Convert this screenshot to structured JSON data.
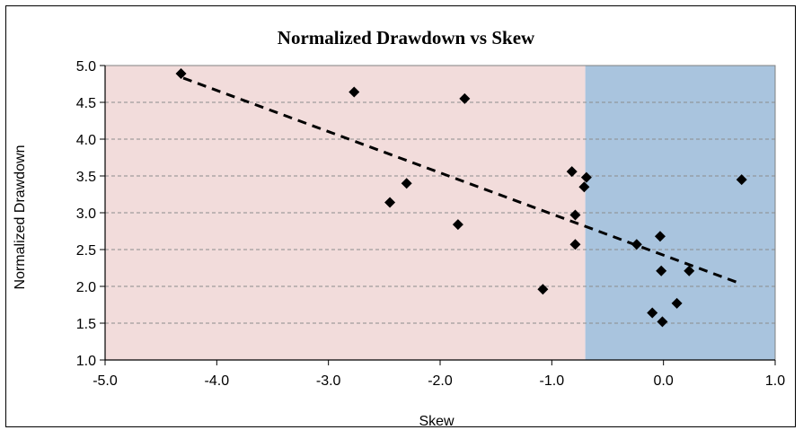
{
  "chart_data": {
    "type": "scatter",
    "title": "Normalized Drawdown vs Skew",
    "xlabel": "Skew",
    "ylabel": "Normalized Drawdown",
    "xlim": [
      -5.0,
      1.0
    ],
    "ylim": [
      1.0,
      5.0
    ],
    "x_ticks": [
      "-5.0",
      "-4.0",
      "-3.0",
      "-2.0",
      "-1.0",
      "0.0",
      "1.0"
    ],
    "y_ticks": [
      "1.0",
      "1.5",
      "2.0",
      "2.5",
      "3.0",
      "3.5",
      "4.0",
      "4.5",
      "5.0"
    ],
    "grid": "horizontal-dashed",
    "background_regions": [
      {
        "x_from": -5.0,
        "x_to": -0.7,
        "color": "#f2dcdb"
      },
      {
        "x_from": -0.7,
        "x_to": 1.0,
        "color": "#a9c4de"
      }
    ],
    "points": [
      {
        "x": -4.32,
        "y": 4.89
      },
      {
        "x": -2.77,
        "y": 4.64
      },
      {
        "x": -1.78,
        "y": 4.55
      },
      {
        "x": -2.45,
        "y": 3.14
      },
      {
        "x": -2.3,
        "y": 3.4
      },
      {
        "x": -1.84,
        "y": 2.84
      },
      {
        "x": -1.08,
        "y": 1.96
      },
      {
        "x": -0.82,
        "y": 3.56
      },
      {
        "x": -0.69,
        "y": 3.48
      },
      {
        "x": -0.71,
        "y": 3.35
      },
      {
        "x": -0.79,
        "y": 2.97
      },
      {
        "x": -0.79,
        "y": 2.57
      },
      {
        "x": -0.24,
        "y": 2.57
      },
      {
        "x": -0.03,
        "y": 2.68
      },
      {
        "x": -0.02,
        "y": 2.21
      },
      {
        "x": 0.23,
        "y": 2.21
      },
      {
        "x": 0.12,
        "y": 1.77
      },
      {
        "x": -0.1,
        "y": 1.64
      },
      {
        "x": -0.01,
        "y": 1.52
      },
      {
        "x": 0.7,
        "y": 3.45
      }
    ],
    "trendline": {
      "type": "linear",
      "x": [
        -4.3,
        0.65
      ],
      "y": [
        4.83,
        2.06
      ],
      "style": "dashed"
    }
  }
}
